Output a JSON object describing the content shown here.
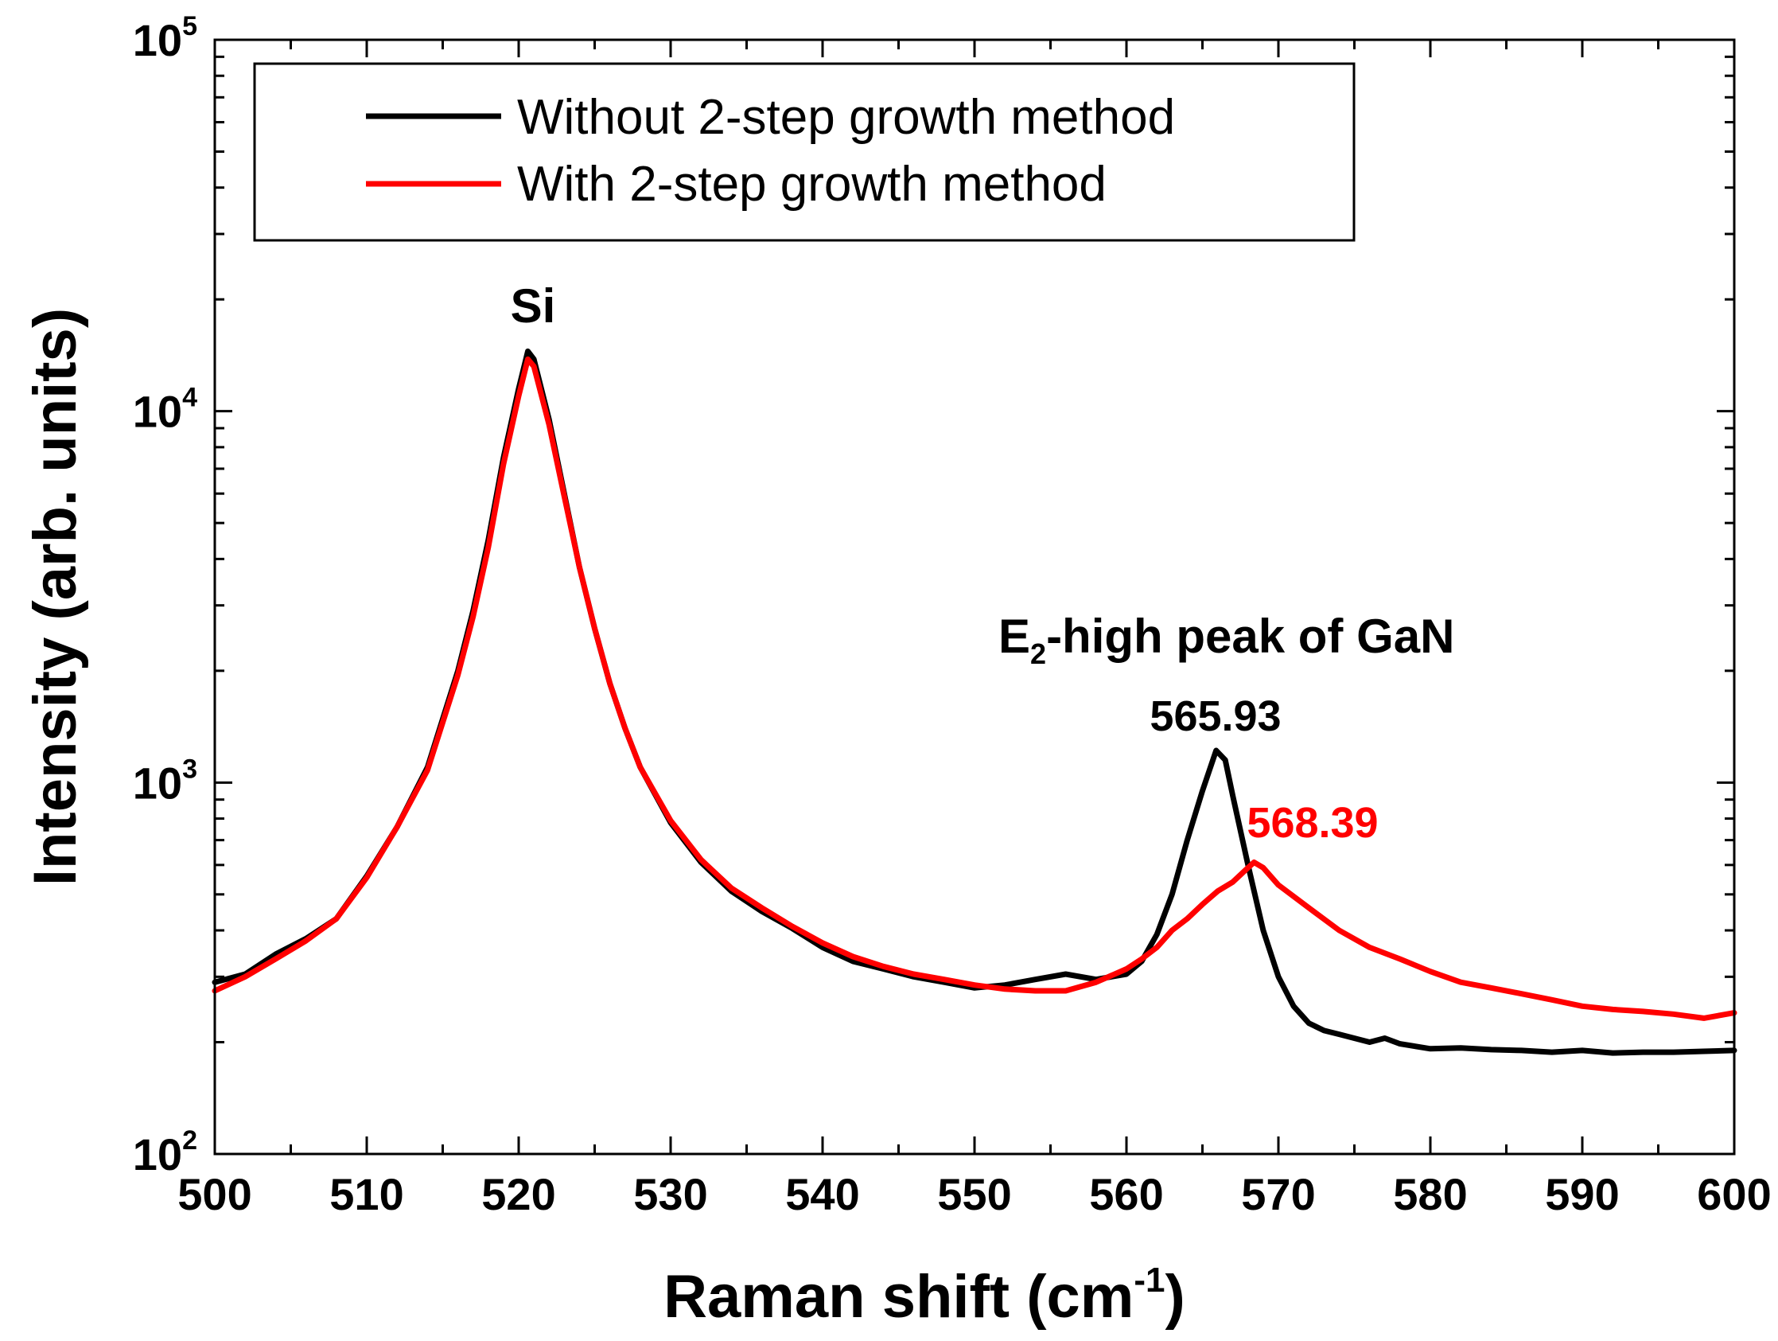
{
  "chart_data": {
    "type": "line",
    "xlabel": "Raman shift (cm",
    "xlabel_sup": "-1",
    "xlabel_end": ")",
    "ylabel": "Intensity (arb. units)",
    "xlim": [
      500,
      600
    ],
    "ylim": [
      100,
      100000
    ],
    "yscale": "log",
    "x_ticks": [
      "500",
      "510",
      "520",
      "530",
      "540",
      "550",
      "560",
      "570",
      "580",
      "590",
      "600"
    ],
    "y_ticks": [
      {
        "base": "10",
        "exp": "2"
      },
      {
        "base": "10",
        "exp": "3"
      },
      {
        "base": "10",
        "exp": "4"
      },
      {
        "base": "10",
        "exp": "5"
      }
    ],
    "legend": {
      "position": "top-left",
      "entries": [
        "Without 2-step growth method",
        "With 2-step growth method"
      ]
    },
    "annotations": {
      "si": "Si",
      "gan_prefix": "E",
      "gan_sub": "2",
      "gan_rest": "-high peak of GaN",
      "peak_without": "565.93",
      "peak_with": "568.39"
    },
    "series": [
      {
        "name": "Without 2-step growth method",
        "color": "#000000",
        "x": [
          500,
          502,
          504,
          506,
          508,
          510,
          512,
          514,
          516,
          517,
          518,
          519,
          520,
          520.6,
          521,
          522,
          523,
          524,
          525,
          526,
          527,
          528,
          530,
          532,
          534,
          536,
          538,
          540,
          542,
          544,
          546,
          548,
          550,
          552,
          554,
          556,
          558,
          560,
          561,
          562,
          563,
          564,
          565,
          565.9,
          566.5,
          567,
          568,
          569,
          570,
          571,
          572,
          573,
          574,
          576,
          577,
          578,
          580,
          582,
          584,
          586,
          588,
          590,
          592,
          594,
          596,
          598,
          600
        ],
        "y": [
          290,
          305,
          345,
          380,
          430,
          560,
          760,
          1100,
          2000,
          2900,
          4500,
          7500,
          11500,
          14500,
          13800,
          9500,
          6000,
          3800,
          2600,
          1850,
          1400,
          1100,
          780,
          610,
          510,
          450,
          405,
          360,
          330,
          315,
          300,
          290,
          280,
          285,
          295,
          305,
          295,
          305,
          330,
          390,
          500,
          700,
          950,
          1220,
          1150,
          920,
          600,
          400,
          300,
          250,
          225,
          215,
          210,
          200,
          205,
          198,
          192,
          193,
          191,
          190,
          188,
          190,
          187,
          188,
          188,
          189,
          190
        ]
      },
      {
        "name": "With 2-step growth method",
        "color": "#ff0000",
        "x": [
          500,
          502,
          504,
          506,
          508,
          510,
          512,
          514,
          516,
          517,
          518,
          519,
          520,
          520.6,
          521,
          522,
          523,
          524,
          525,
          526,
          527,
          528,
          530,
          532,
          534,
          536,
          538,
          540,
          542,
          544,
          546,
          548,
          550,
          552,
          554,
          556,
          558,
          560,
          561,
          562,
          563,
          564,
          565,
          566,
          567,
          568,
          568.4,
          569,
          570,
          572,
          574,
          576,
          578,
          580,
          582,
          584,
          586,
          588,
          590,
          592,
          594,
          596,
          598,
          600
        ],
        "y": [
          275,
          300,
          335,
          375,
          430,
          555,
          760,
          1080,
          1950,
          2800,
          4300,
          7200,
          11000,
          13800,
          13200,
          9200,
          5900,
          3800,
          2600,
          1850,
          1400,
          1100,
          790,
          620,
          520,
          460,
          410,
          370,
          340,
          320,
          305,
          295,
          285,
          278,
          275,
          275,
          290,
          315,
          335,
          360,
          400,
          430,
          470,
          510,
          540,
          590,
          610,
          590,
          530,
          460,
          400,
          360,
          335,
          310,
          290,
          280,
          270,
          260,
          250,
          245,
          242,
          238,
          232,
          240
        ]
      }
    ]
  }
}
